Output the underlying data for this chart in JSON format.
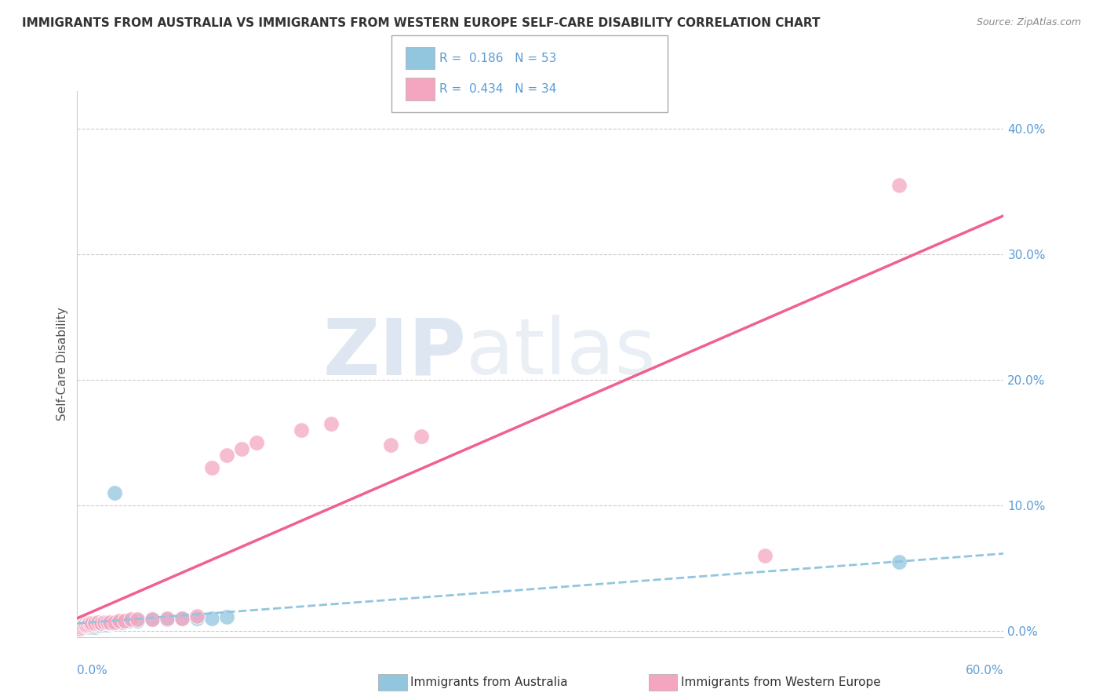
{
  "title": "IMMIGRANTS FROM AUSTRALIA VS IMMIGRANTS FROM WESTERN EUROPE SELF-CARE DISABILITY CORRELATION CHART",
  "source": "Source: ZipAtlas.com",
  "xlabel_bottom_left": "0.0%",
  "xlabel_bottom_right": "60.0%",
  "ylabel": "Self-Care Disability",
  "ylabel_right_ticks": [
    "0.0%",
    "10.0%",
    "20.0%",
    "30.0%",
    "40.0%"
  ],
  "xlim": [
    0.0,
    0.62
  ],
  "ylim": [
    -0.005,
    0.43
  ],
  "legend_r1": "R =  0.186",
  "legend_n1": "N = 53",
  "legend_r2": "R =  0.434",
  "legend_n2": "N = 34",
  "color_australia": "#92c5de",
  "color_western_europe": "#f4a6c0",
  "color_line_australia": "#92c5de",
  "color_line_western_europe": "#f06090",
  "background_color": "#ffffff",
  "australia_x": [
    0.001,
    0.002,
    0.002,
    0.003,
    0.003,
    0.004,
    0.004,
    0.005,
    0.005,
    0.006,
    0.006,
    0.007,
    0.007,
    0.008,
    0.008,
    0.009,
    0.009,
    0.01,
    0.01,
    0.011,
    0.011,
    0.012,
    0.012,
    0.013,
    0.013,
    0.014,
    0.015,
    0.015,
    0.016,
    0.017,
    0.018,
    0.019,
    0.02,
    0.021,
    0.022,
    0.023,
    0.024,
    0.025,
    0.026,
    0.027,
    0.028,
    0.03,
    0.032,
    0.035,
    0.04,
    0.05,
    0.06,
    0.07,
    0.08,
    0.09,
    0.1,
    0.025,
    0.55
  ],
  "australia_y": [
    0.002,
    0.003,
    0.005,
    0.004,
    0.007,
    0.003,
    0.005,
    0.004,
    0.006,
    0.003,
    0.005,
    0.004,
    0.006,
    0.003,
    0.005,
    0.004,
    0.006,
    0.003,
    0.005,
    0.004,
    0.006,
    0.003,
    0.005,
    0.004,
    0.006,
    0.004,
    0.005,
    0.007,
    0.004,
    0.005,
    0.005,
    0.006,
    0.005,
    0.006,
    0.006,
    0.006,
    0.006,
    0.007,
    0.007,
    0.007,
    0.007,
    0.007,
    0.008,
    0.008,
    0.008,
    0.009,
    0.009,
    0.01,
    0.01,
    0.01,
    0.011,
    0.11,
    0.055
  ],
  "western_europe_x": [
    0.002,
    0.003,
    0.004,
    0.005,
    0.006,
    0.007,
    0.008,
    0.009,
    0.01,
    0.012,
    0.014,
    0.016,
    0.018,
    0.02,
    0.022,
    0.025,
    0.028,
    0.032,
    0.036,
    0.04,
    0.05,
    0.06,
    0.07,
    0.08,
    0.09,
    0.1,
    0.11,
    0.12,
    0.15,
    0.17,
    0.21,
    0.23,
    0.46,
    0.55
  ],
  "western_europe_y": [
    0.002,
    0.003,
    0.004,
    0.005,
    0.004,
    0.005,
    0.006,
    0.005,
    0.006,
    0.006,
    0.007,
    0.006,
    0.007,
    0.007,
    0.007,
    0.007,
    0.008,
    0.008,
    0.009,
    0.009,
    0.009,
    0.01,
    0.01,
    0.012,
    0.13,
    0.14,
    0.145,
    0.15,
    0.16,
    0.165,
    0.148,
    0.155,
    0.06,
    0.355
  ]
}
